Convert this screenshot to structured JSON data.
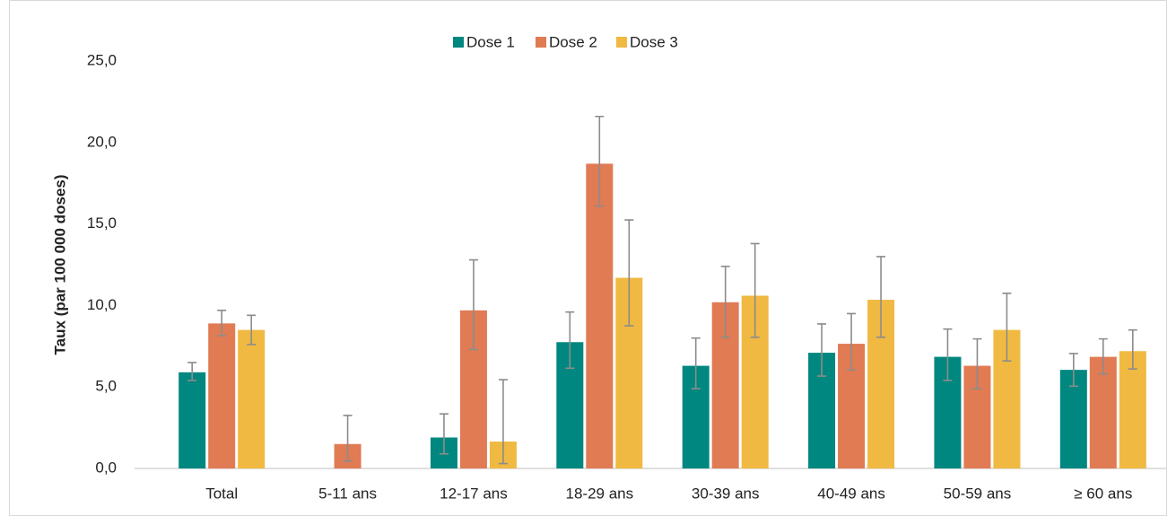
{
  "chart_data": {
    "type": "bar",
    "y_label": "Taux  (par 100 000 doses)",
    "categories": [
      "Total",
      "5-11 ans",
      "12-17 ans",
      "18-29 ans",
      "30-39 ans",
      "40-49 ans",
      "50-59 ans",
      "≥ 60 ans"
    ],
    "series": [
      {
        "name": "Dose 1",
        "color": "#00877f",
        "values": [
          5.9,
          null,
          1.9,
          7.75,
          6.3,
          7.1,
          6.85,
          6.05
        ],
        "lower": [
          5.4,
          null,
          0.9,
          6.15,
          4.9,
          5.67,
          5.4,
          5.05
        ],
        "upper": [
          6.5,
          null,
          3.35,
          9.6,
          8.0,
          8.87,
          8.55,
          7.05
        ]
      },
      {
        "name": "Dose 2",
        "color": "#e07b54",
        "values": [
          8.9,
          1.5,
          9.7,
          18.7,
          10.2,
          7.65,
          6.3,
          6.85
        ],
        "lower": [
          8.15,
          0.45,
          7.3,
          16.1,
          8.05,
          6.05,
          4.9,
          5.8
        ],
        "upper": [
          9.7,
          3.25,
          12.8,
          21.6,
          12.4,
          9.5,
          7.95,
          7.95
        ]
      },
      {
        "name": "Dose 3",
        "color": "#f0b942",
        "values": [
          8.5,
          null,
          1.65,
          11.7,
          10.6,
          10.35,
          8.5,
          7.2
        ],
        "lower": [
          7.6,
          null,
          0.3,
          8.75,
          8.05,
          8.05,
          6.6,
          6.1
        ],
        "upper": [
          9.4,
          null,
          5.45,
          15.25,
          13.8,
          13.0,
          10.75,
          8.5
        ]
      }
    ],
    "ylim": [
      0,
      25
    ],
    "yticks": [
      {
        "value": 0,
        "label": "0,0"
      },
      {
        "value": 5,
        "label": "5,0"
      },
      {
        "value": 10,
        "label": "10,0"
      },
      {
        "value": 15,
        "label": "15,0"
      },
      {
        "value": 20,
        "label": "20,0"
      },
      {
        "value": 25,
        "label": "25,0"
      }
    ],
    "legend": "top",
    "grid": false,
    "error_color": "#8c8c8c"
  }
}
